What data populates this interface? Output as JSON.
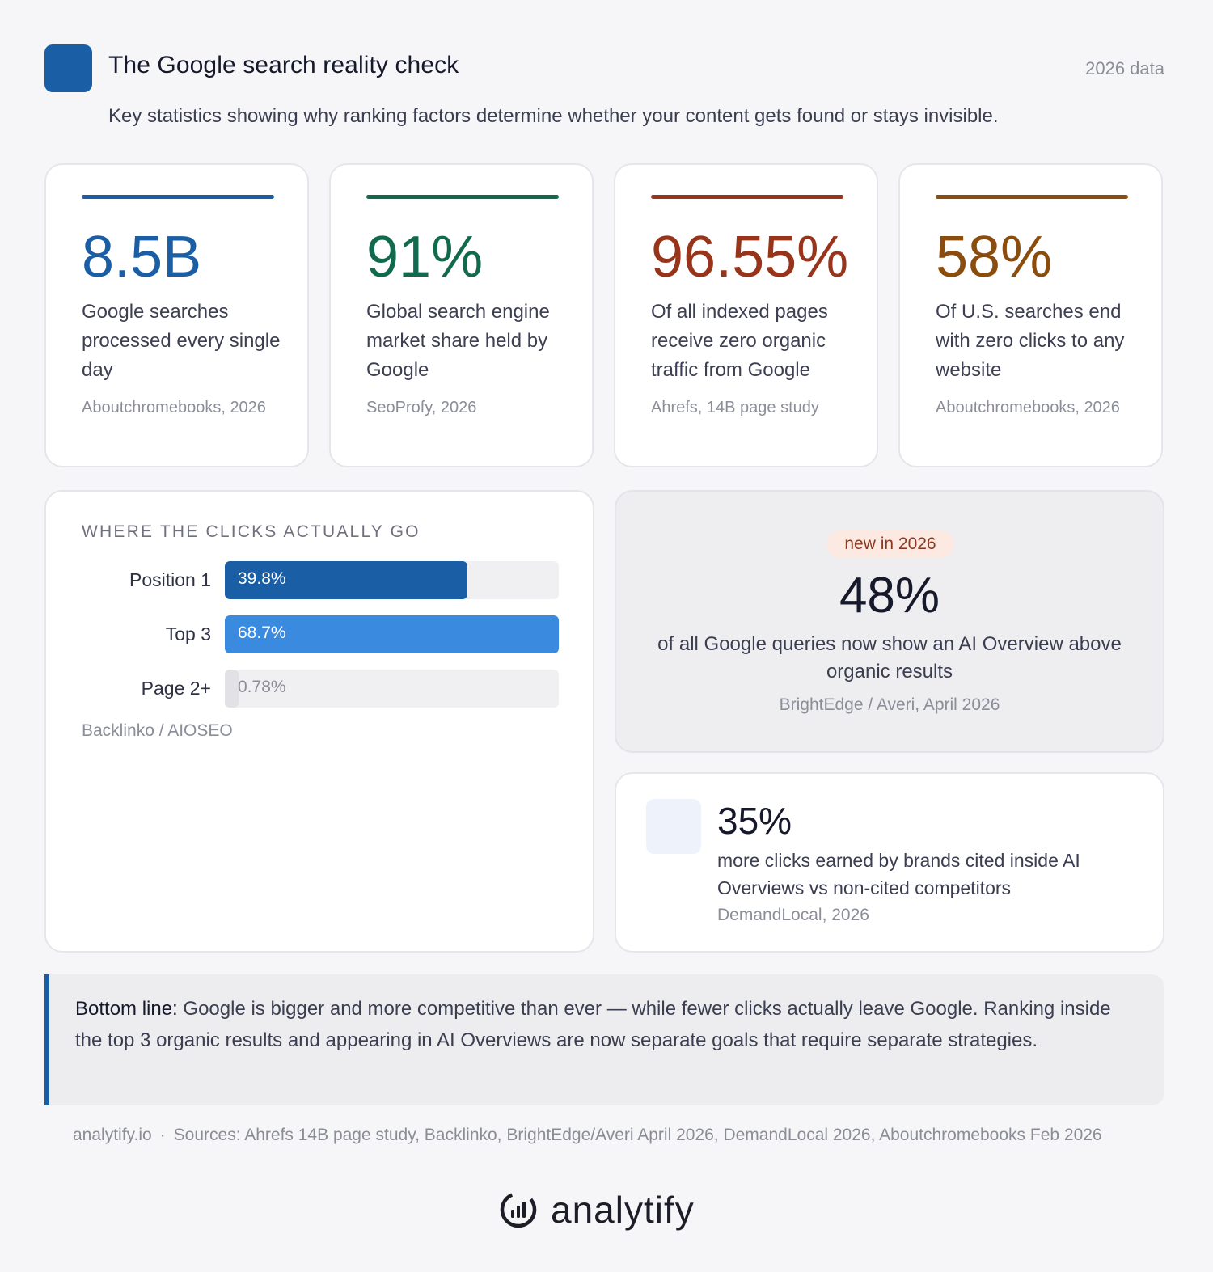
{
  "header": {
    "title": "The Google search reality check",
    "year_tag": "2026 data",
    "subtitle": "Key statistics showing why ranking factors determine whether your content gets found or stays invisible.",
    "accent": "#1a5ea6"
  },
  "stats": [
    {
      "value": "8.5B",
      "description": "Google searches processed every single day",
      "source": "Aboutchromebooks, 2026",
      "color": "#1a5ea6"
    },
    {
      "value": "91%",
      "description": "Global search engine market share held by Google",
      "source": "SeoProfy, 2026",
      "color": "#126a4e"
    },
    {
      "value": "96.55%",
      "description": "Of all indexed pages receive zero organic traffic from Google",
      "source": "Ahrefs, 14B page study",
      "color": "#973419"
    },
    {
      "value": "58%",
      "description": "Of U.S. searches end with zero clicks to any website",
      "source": "Aboutchromebooks, 2026",
      "color": "#8a4d0d"
    }
  ],
  "clicks": {
    "title": "WHERE THE CLICKS ACTUALLY GO",
    "rows": [
      {
        "label": "Position 1",
        "value_text": "39.8%",
        "value": 39.8,
        "color": "#1a5ea6",
        "text_color": "#ffffff"
      },
      {
        "label": "Top 3",
        "value_text": "68.7%",
        "value": 68.7,
        "color": "#3a8ae0",
        "text_color": "#ffffff"
      },
      {
        "label": "Page 2+",
        "value_text": "0.78%",
        "value": 0.78,
        "color": "#e2e2e6",
        "text_color": "#8b8d98"
      }
    ],
    "source": "Backlinko / AIOSEO"
  },
  "ai_overview": {
    "badge": "new in 2026",
    "value": "48%",
    "description": "of all Google queries now show an AI Overview above organic results",
    "source": "BrightEdge / Averi, April 2026"
  },
  "cited": {
    "value": "35%",
    "description": "more clicks earned by brands cited inside AI Overviews vs non-cited competitors",
    "source": "DemandLocal, 2026"
  },
  "bottom_line": {
    "label": "Bottom line:",
    "text": " Google is bigger and more competitive than ever — while fewer clicks actually leave Google. Ranking inside the top 3 organic results and appearing in AI Overviews are now separate goals that require separate strategies."
  },
  "footer": {
    "site": "analytify.io",
    "separator": "·",
    "sources": "Sources: Ahrefs 14B page study, Backlinko, BrightEdge/Averi April 2026, DemandLocal 2026, Aboutchromebooks Feb 2026"
  },
  "logo": {
    "text": "analytify",
    "icon": "analytify-logo-icon"
  }
}
